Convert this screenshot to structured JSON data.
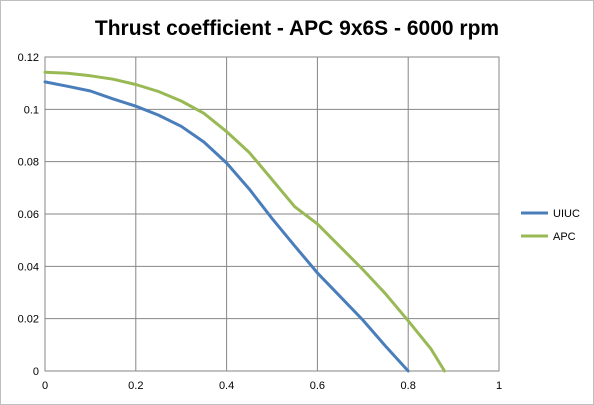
{
  "chart_data": {
    "type": "line",
    "title": "Thrust coefficient - APC 9x6S - 6000 rpm",
    "xlabel": "",
    "ylabel": "",
    "xlim": [
      0,
      1
    ],
    "ylim": [
      0,
      0.12
    ],
    "x_ticks": [
      "0",
      "0.2",
      "0.4",
      "0.6",
      "0.8",
      "1"
    ],
    "y_ticks": [
      "0",
      "0.02",
      "0.04",
      "0.06",
      "0.08",
      "0.1",
      "0.12"
    ],
    "grid": true,
    "legend_position": "right",
    "series": [
      {
        "name": "UIUC",
        "color": "#4a7ebb",
        "x": [
          0,
          0.05,
          0.1,
          0.15,
          0.2,
          0.25,
          0.3,
          0.35,
          0.4,
          0.45,
          0.5,
          0.55,
          0.6,
          0.65,
          0.7,
          0.75,
          0.8
        ],
        "y": [
          0.1105,
          0.1088,
          0.107,
          0.104,
          0.1012,
          0.0978,
          0.0935,
          0.0875,
          0.0795,
          0.0695,
          0.0583,
          0.0478,
          0.0375,
          0.0285,
          0.0195,
          0.0095,
          0
        ]
      },
      {
        "name": "APC",
        "color": "#98b954",
        "x": [
          0,
          0.05,
          0.1,
          0.15,
          0.2,
          0.25,
          0.3,
          0.35,
          0.4,
          0.45,
          0.5,
          0.55,
          0.6,
          0.65,
          0.7,
          0.75,
          0.8,
          0.85,
          0.88
        ],
        "y": [
          0.1142,
          0.1138,
          0.1128,
          0.1115,
          0.1095,
          0.1068,
          0.1032,
          0.0985,
          0.0915,
          0.0835,
          0.0732,
          0.0628,
          0.0562,
          0.0475,
          0.0388,
          0.0295,
          0.0192,
          0.0085,
          0
        ]
      }
    ]
  }
}
